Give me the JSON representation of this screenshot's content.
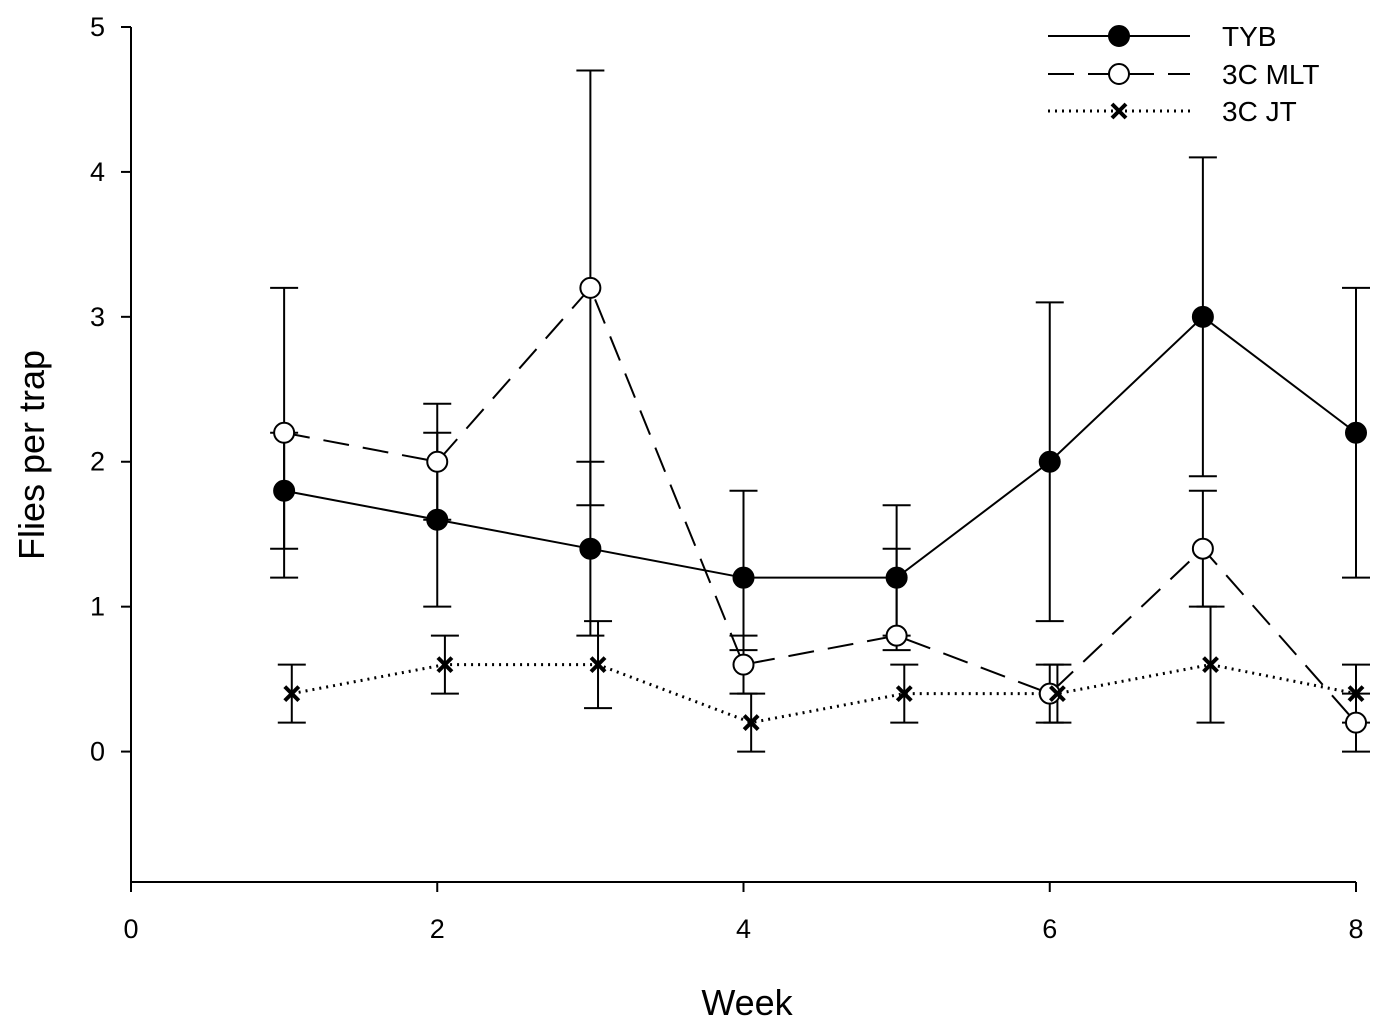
{
  "chart_data": {
    "type": "line",
    "title": "",
    "xlabel": "Week",
    "ylabel": "Flies per trap",
    "xlim": [
      0,
      8
    ],
    "ylim": [
      -0.9,
      5
    ],
    "xticks": [
      0,
      2,
      4,
      6,
      8
    ],
    "yticks": [
      0,
      1,
      2,
      3,
      4,
      5
    ],
    "grid": false,
    "legend_position": "top-right",
    "series": [
      {
        "name": "TYB",
        "marker": "filled-circle",
        "line_style": "solid",
        "x": [
          1,
          2,
          3,
          4,
          5,
          6,
          7,
          8
        ],
        "y": [
          1.8,
          1.6,
          1.4,
          1.2,
          1.2,
          2.0,
          3.0,
          2.2
        ],
        "err_low": [
          1.2,
          1.0,
          0.8,
          0.7,
          0.7,
          0.9,
          1.9,
          1.2
        ],
        "err_high": [
          2.2,
          2.2,
          2.0,
          1.8,
          1.7,
          3.1,
          4.1,
          3.2
        ]
      },
      {
        "name": "3C MLT",
        "marker": "open-circle",
        "line_style": "dashed",
        "x": [
          1,
          2,
          3,
          4,
          5,
          6,
          7,
          8
        ],
        "y": [
          2.2,
          2.0,
          3.2,
          0.6,
          0.8,
          0.4,
          1.4,
          0.2
        ],
        "err_low": [
          1.4,
          1.6,
          1.7,
          0.4,
          0.8,
          0.2,
          1.0,
          0.0
        ],
        "err_high": [
          3.2,
          2.4,
          4.7,
          0.8,
          1.4,
          0.6,
          1.8,
          0.4
        ]
      },
      {
        "name": "3C JT",
        "marker": "x",
        "line_style": "dotted",
        "x": [
          1.05,
          2.05,
          3.05,
          4.05,
          5.05,
          6.05,
          7.05,
          8.0
        ],
        "y": [
          0.4,
          0.6,
          0.6,
          0.2,
          0.4,
          0.4,
          0.6,
          0.4
        ],
        "err_low": [
          0.2,
          0.4,
          0.3,
          0.0,
          0.2,
          0.2,
          0.2,
          0.2
        ],
        "err_high": [
          0.6,
          0.8,
          0.9,
          0.4,
          0.6,
          0.6,
          1.0,
          0.6
        ]
      }
    ]
  }
}
